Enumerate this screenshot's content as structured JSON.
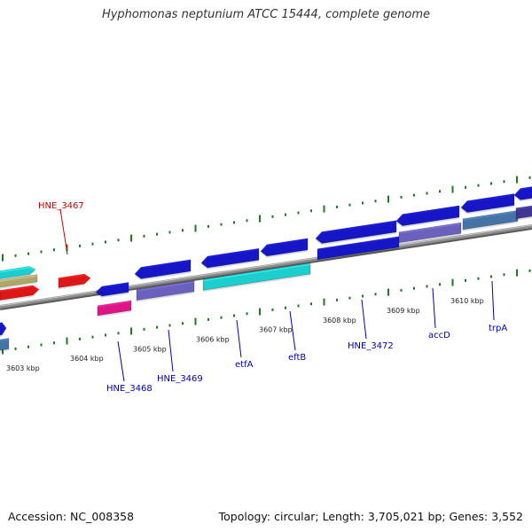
{
  "title": "Hyphomonas neptunium ATCC 15444, complete genome",
  "footer": {
    "accession": "Accession: NC_008358",
    "summary": "Topology: circular; Length: 3,705,021 bp; Genes: 3,552"
  },
  "colors": {
    "backbone": "#8c8c8c",
    "tick": "#1e7a1e",
    "gene_label": "#0000aa",
    "highlight_label": "#cc0000",
    "blue": "#1a1ae6",
    "cyan": "#22eeee",
    "red": "#ff1a1a",
    "magenta": "#ff1a9c",
    "purple": "#7b6fdc",
    "steel": "#4f86c0",
    "khaki": "#c8c27a"
  },
  "axis": {
    "unit": "kbp",
    "ticks": [
      "3603 kbp",
      "3604 kbp",
      "3605 kbp",
      "3606 kbp",
      "3607 kbp",
      "3608 kbp",
      "3609 kbp",
      "3610 kbp"
    ]
  },
  "gene_labels": [
    {
      "name": "HNE_3467",
      "highlight": true
    },
    {
      "name": "HNE_3468",
      "highlight": false
    },
    {
      "name": "HNE_3469",
      "highlight": false
    },
    {
      "name": "etfA",
      "highlight": false
    },
    {
      "name": "eftB",
      "highlight": false
    },
    {
      "name": "HNE_3472",
      "highlight": false
    },
    {
      "name": "accD",
      "highlight": false
    },
    {
      "name": "trpA",
      "highlight": false
    }
  ]
}
